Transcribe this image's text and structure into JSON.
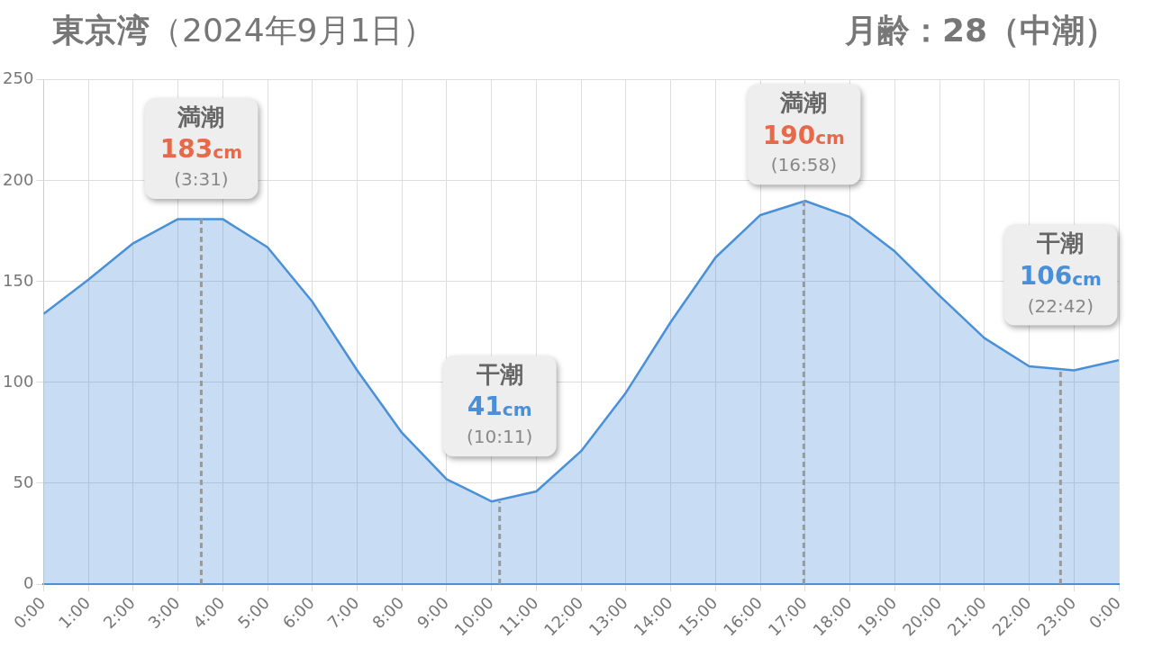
{
  "chart_data": {
    "type": "area",
    "title": "東京湾（2024年9月1日）",
    "subtitle": "月齢：28（中潮）",
    "x": [
      0,
      1,
      2,
      3,
      4,
      5,
      6,
      7,
      8,
      9,
      10,
      11,
      12,
      13,
      14,
      15,
      16,
      17,
      18,
      19,
      20,
      21,
      22,
      23,
      24
    ],
    "series": [
      {
        "color": "#4a90d9",
        "values": [
          134,
          151,
          169,
          181,
          181,
          167,
          140,
          106,
          75,
          52,
          41,
          46,
          66,
          95,
          130,
          162,
          183,
          190,
          182,
          165,
          143,
          122,
          108,
          106,
          111
        ]
      }
    ],
    "xlim": [
      0,
      24
    ],
    "xticks": [
      {
        "value": 0,
        "label": "0:00"
      },
      {
        "value": 1,
        "label": "1:00"
      },
      {
        "value": 2,
        "label": "2:00"
      },
      {
        "value": 3,
        "label": "3:00"
      },
      {
        "value": 4,
        "label": "4:00"
      },
      {
        "value": 5,
        "label": "5:00"
      },
      {
        "value": 6,
        "label": "6:00"
      },
      {
        "value": 7,
        "label": "7:00"
      },
      {
        "value": 8,
        "label": "8:00"
      },
      {
        "value": 9,
        "label": "9:00"
      },
      {
        "value": 10,
        "label": "10:00"
      },
      {
        "value": 11,
        "label": "11:00"
      },
      {
        "value": 12,
        "label": "12:00"
      },
      {
        "value": 13,
        "label": "13:00"
      },
      {
        "value": 14,
        "label": "14:00"
      },
      {
        "value": 15,
        "label": "15:00"
      },
      {
        "value": 16,
        "label": "16:00"
      },
      {
        "value": 17,
        "label": "17:00"
      },
      {
        "value": 18,
        "label": "18:00"
      },
      {
        "value": 19,
        "label": "19:00"
      },
      {
        "value": 20,
        "label": "20:00"
      },
      {
        "value": 21,
        "label": "21:00"
      },
      {
        "value": 22,
        "label": "22:00"
      },
      {
        "value": 23,
        "label": "23:00"
      },
      {
        "value": 24,
        "label": "0:00"
      }
    ],
    "ylim": [
      0,
      250
    ],
    "yticks": [
      0,
      50,
      100,
      150,
      200,
      250
    ],
    "grid": true,
    "legend": false,
    "marker": "none",
    "line_style": "solid",
    "ref_lines": [
      {
        "axis": "x",
        "value": 3.52,
        "color": "#999999",
        "line_style": "dashed"
      },
      {
        "axis": "x",
        "value": 10.18,
        "color": "#999999",
        "line_style": "dashed"
      },
      {
        "axis": "x",
        "value": 16.97,
        "color": "#999999",
        "line_style": "dashed"
      },
      {
        "axis": "x",
        "value": 22.7,
        "color": "#999999",
        "line_style": "dashed"
      }
    ],
    "annotations": [
      {
        "text": "満潮\n183cm\n(3:31)",
        "x": 3.52,
        "y": 183
      },
      {
        "text": "干潮\n41cm\n(10:11)",
        "x": 10.18,
        "y": 41
      },
      {
        "text": "満潮\n190cm\n(16:58)",
        "x": 16.97,
        "y": 190
      },
      {
        "text": "干潮\n106cm\n(22:42)",
        "x": 22.7,
        "y": 106
      }
    ]
  }
}
